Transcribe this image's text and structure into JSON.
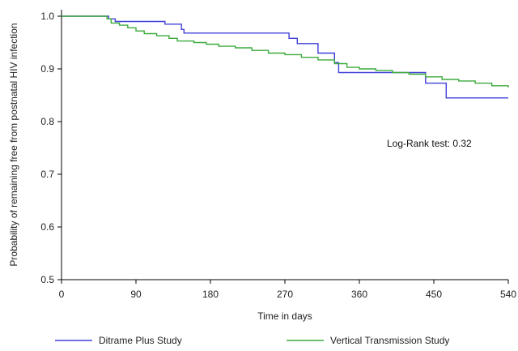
{
  "chart_data": {
    "type": "line",
    "step": true,
    "xlabel": "Time in days",
    "ylabel": "Probability of remaining free from postnatal HIV infection",
    "xlim": [
      0,
      540
    ],
    "ylim": [
      0.5,
      1.0
    ],
    "x_ticks": [
      0,
      90,
      180,
      270,
      360,
      450,
      540
    ],
    "y_ticks": [
      0.5,
      0.6,
      0.7,
      0.8,
      0.9,
      1.0
    ],
    "y_tick_labels": [
      "0.5",
      "0.6",
      "0.7",
      "0.8",
      "0.9",
      "1.0"
    ],
    "grid": false,
    "annotation": "Log-Rank test: 0.32",
    "legend_position": "bottom",
    "series": [
      {
        "name": "Ditrame Plus Study",
        "color": "#4040d8",
        "points": [
          [
            0,
            1.0
          ],
          [
            55,
            1.0
          ],
          [
            57,
            0.995
          ],
          [
            65,
            0.99
          ],
          [
            125,
            0.985
          ],
          [
            145,
            0.975
          ],
          [
            148,
            0.968
          ],
          [
            270,
            0.968
          ],
          [
            275,
            0.958
          ],
          [
            285,
            0.948
          ],
          [
            310,
            0.93
          ],
          [
            330,
            0.912
          ],
          [
            335,
            0.893
          ],
          [
            420,
            0.893
          ],
          [
            440,
            0.873
          ],
          [
            462,
            0.873
          ],
          [
            465,
            0.845
          ],
          [
            540,
            0.845
          ]
        ]
      },
      {
        "name": "Vertical Transmission Study",
        "color": "#3caa3c",
        "points": [
          [
            0,
            1.0
          ],
          [
            50,
            1.0
          ],
          [
            55,
            0.995
          ],
          [
            60,
            0.987
          ],
          [
            70,
            0.983
          ],
          [
            80,
            0.978
          ],
          [
            90,
            0.972
          ],
          [
            100,
            0.967
          ],
          [
            115,
            0.963
          ],
          [
            130,
            0.958
          ],
          [
            140,
            0.953
          ],
          [
            160,
            0.95
          ],
          [
            175,
            0.947
          ],
          [
            190,
            0.943
          ],
          [
            210,
            0.94
          ],
          [
            230,
            0.935
          ],
          [
            250,
            0.93
          ],
          [
            270,
            0.927
          ],
          [
            290,
            0.922
          ],
          [
            310,
            0.917
          ],
          [
            330,
            0.91
          ],
          [
            345,
            0.903
          ],
          [
            360,
            0.9
          ],
          [
            380,
            0.897
          ],
          [
            400,
            0.893
          ],
          [
            420,
            0.89
          ],
          [
            440,
            0.885
          ],
          [
            460,
            0.88
          ],
          [
            480,
            0.877
          ],
          [
            500,
            0.873
          ],
          [
            520,
            0.868
          ],
          [
            540,
            0.865
          ]
        ]
      }
    ]
  }
}
